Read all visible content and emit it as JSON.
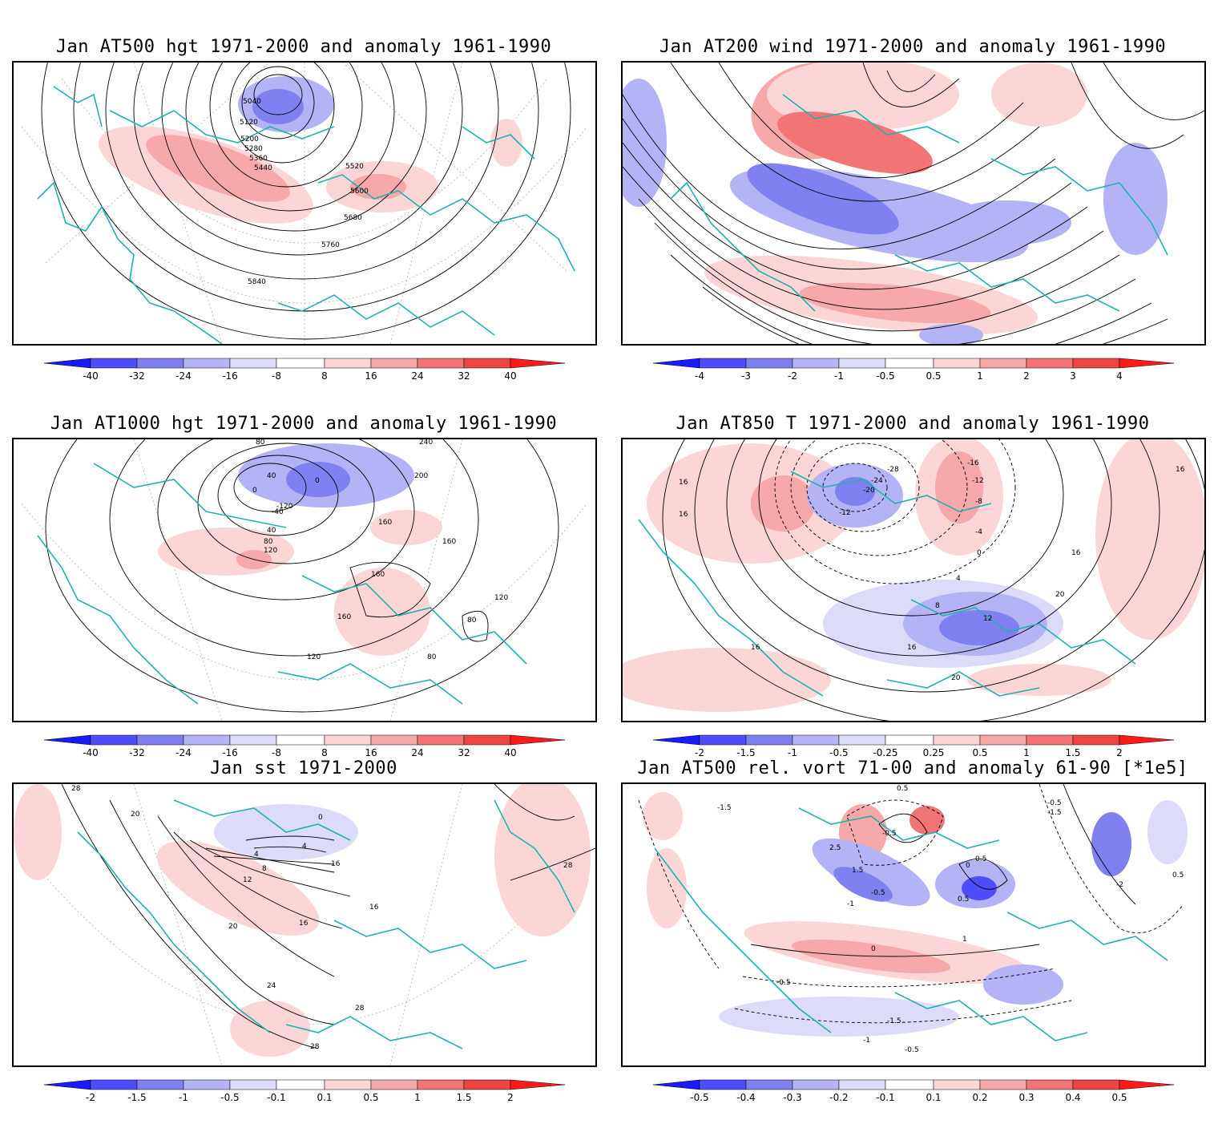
{
  "panels": [
    {
      "title": "Jan AT500 hgt 1971-2000 and anomaly 1961-1990",
      "contour_labels": [
        "5040",
        "5120",
        "5200",
        "5280",
        "5360",
        "5440",
        "5520",
        "5600",
        "5680",
        "5760",
        "5840"
      ],
      "colorbar_ticks": [
        "-40",
        "-32",
        "-24",
        "-16",
        "-8",
        "8",
        "16",
        "24",
        "32",
        "40"
      ]
    },
    {
      "title": "Jan AT200 wind 1971-2000 and anomaly 1961-1990",
      "contour_labels": [],
      "colorbar_ticks": [
        "-4",
        "-3",
        "-2",
        "-1",
        "-0.5",
        "0.5",
        "1",
        "2",
        "3",
        "4"
      ]
    },
    {
      "title": "Jan AT1000 hgt 1971-2000 and anomaly 1961-1990",
      "contour_labels": [
        "80",
        "40",
        "0",
        "-120",
        "0",
        "-40",
        "40",
        "80",
        "120",
        "160",
        "160",
        "160",
        "200",
        "240",
        "120",
        "80",
        "160",
        "80",
        "120"
      ],
      "colorbar_ticks": [
        "-40",
        "-32",
        "-24",
        "-16",
        "-8",
        "8",
        "16",
        "24",
        "32",
        "40"
      ]
    },
    {
      "title": "Jan AT850 T 1971-2000 and anomaly 1961-1990",
      "contour_labels": [
        "-28",
        "-24",
        "-20",
        "-16",
        "-12",
        "-8",
        "-4",
        "-12",
        "0",
        "4",
        "8",
        "12",
        "16",
        "16",
        "16",
        "16",
        "20",
        "20",
        "16",
        "16"
      ],
      "colorbar_ticks": [
        "-2",
        "-1.5",
        "-1",
        "-0.5",
        "-0.25",
        "0.25",
        "0.5",
        "1",
        "1.5",
        "2"
      ]
    },
    {
      "title": "Jan sst 1971-2000",
      "contour_labels": [
        "28",
        "20",
        "0",
        "4",
        "4",
        "8",
        "12",
        "16",
        "20",
        "24",
        "28",
        "28",
        "16",
        "16",
        "28"
      ],
      "colorbar_ticks": [
        "-2",
        "-1.5",
        "-1",
        "-0.5",
        "-0.1",
        "0.1",
        "0.5",
        "1",
        "1.5",
        "2"
      ]
    },
    {
      "title": "Jan AT500 rel. vort 71-00 and anomaly 61-90 [*1e5]",
      "contour_labels": [
        "-1.5",
        "0.5",
        "-0.5",
        "2.5",
        "1.5",
        "-1",
        "-0.5",
        "0.5",
        "0",
        "0.5",
        "-2",
        "-1.5",
        "-0.5",
        "0",
        "0.5",
        "1",
        "-1.5",
        "-1",
        "-0.5",
        "-0.5"
      ],
      "colorbar_ticks": [
        "-0.5",
        "-0.4",
        "-0.3",
        "-0.2",
        "-0.1",
        "0.1",
        "0.2",
        "0.3",
        "0.4",
        "0.5"
      ]
    }
  ],
  "colors": {
    "frame": "#000000",
    "coastline": "#20b2b2",
    "contour": "#000000",
    "grid": "#b0b0b0",
    "scale": [
      "#1a1aff",
      "#4d4dff",
      "#8080f0",
      "#b3b3f5",
      "#dcdcfa",
      "#ffffff",
      "#fcd6d6",
      "#f7a8a8",
      "#f27474",
      "#ee4444",
      "#ff1a1a"
    ]
  }
}
